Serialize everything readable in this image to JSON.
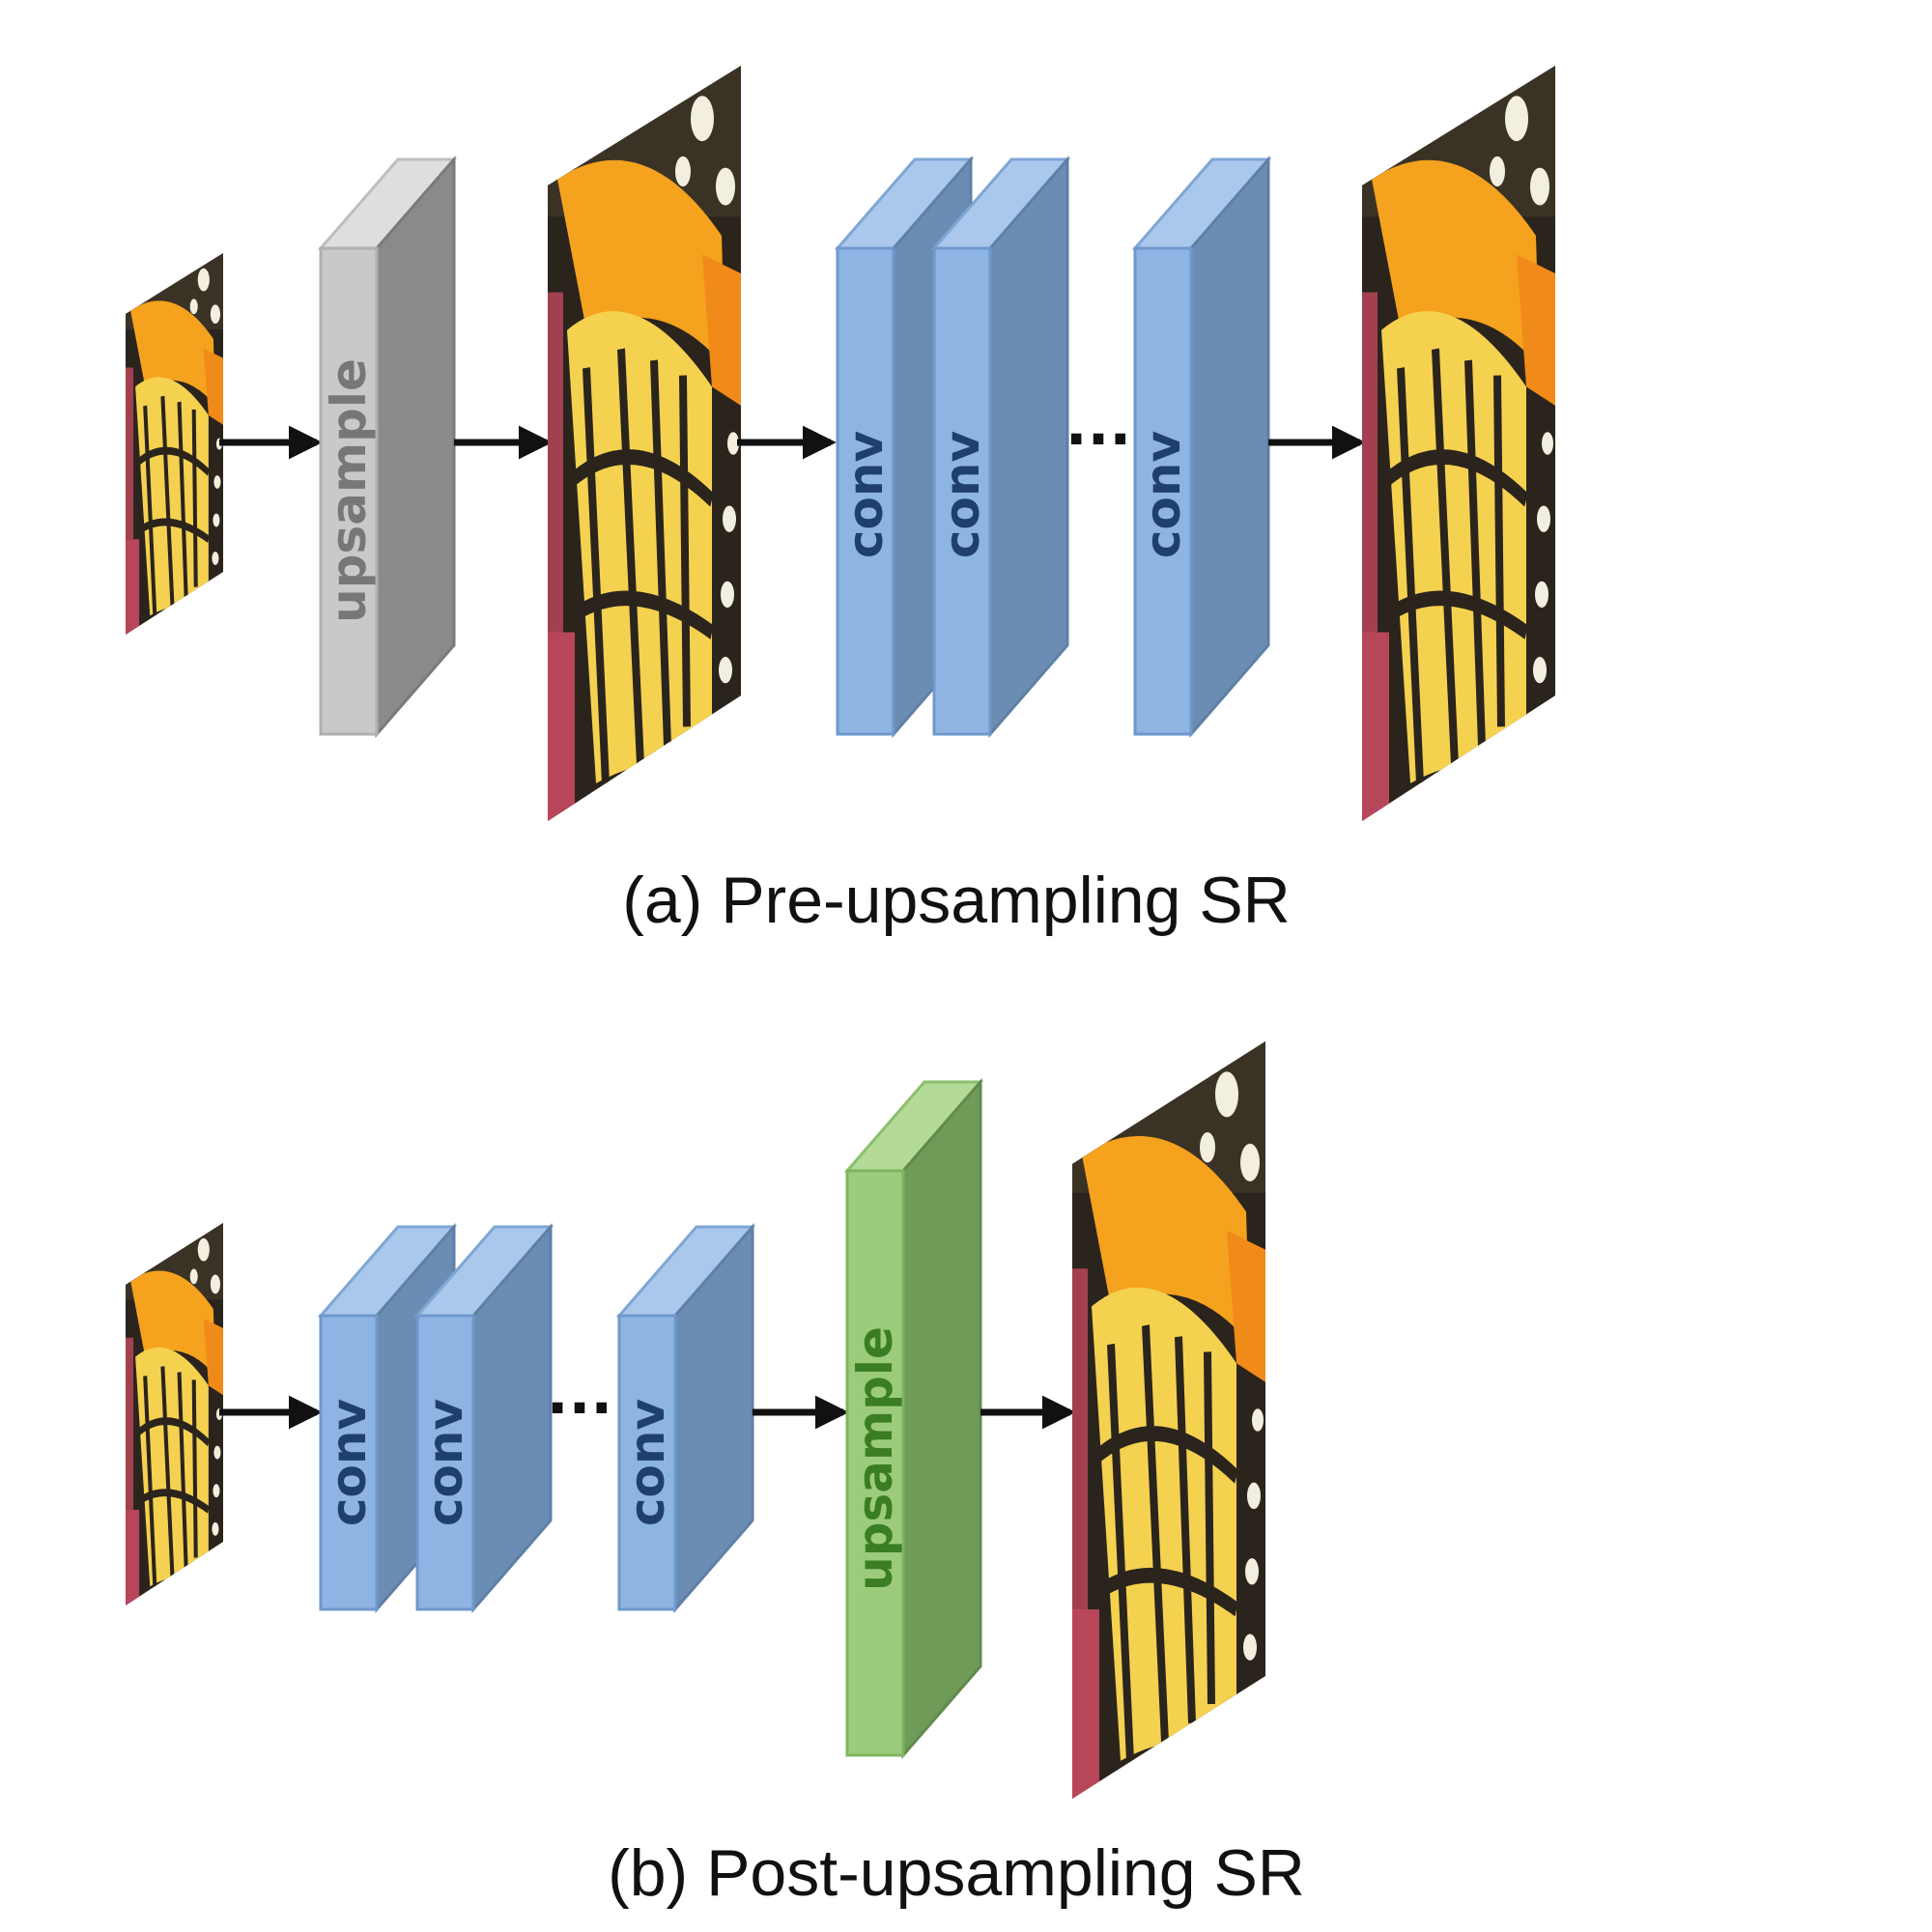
{
  "colors": {
    "upsample_pre_front": "#c9c9c9",
    "upsample_pre_side": "#8a8a8a",
    "upsample_pre_top": "#dedede",
    "upsample_pre_text": "#777777",
    "conv_front": "#8db4e2",
    "conv_side": "#6b8db3",
    "conv_top": "#a9c8ec",
    "conv_text": "#1f3f6e",
    "upsample_post_front": "#9ccb7c",
    "upsample_post_side": "#6f9a58",
    "upsample_post_top": "#b4da98",
    "upsample_post_text": "#3a7d22",
    "arrow": "#111111",
    "image_icon": "butterfly-image-icon"
  },
  "pre_upsampling": {
    "upsample_label": "upsample",
    "conv_labels": [
      "conv",
      "conv",
      "conv"
    ],
    "ellipsis": "···",
    "caption": "(a) Pre-upsampling SR"
  },
  "post_upsampling": {
    "conv_labels": [
      "conv",
      "conv",
      "conv"
    ],
    "ellipsis": "···",
    "upsample_label": "upsample",
    "caption": "(b) Post-upsampling SR"
  }
}
